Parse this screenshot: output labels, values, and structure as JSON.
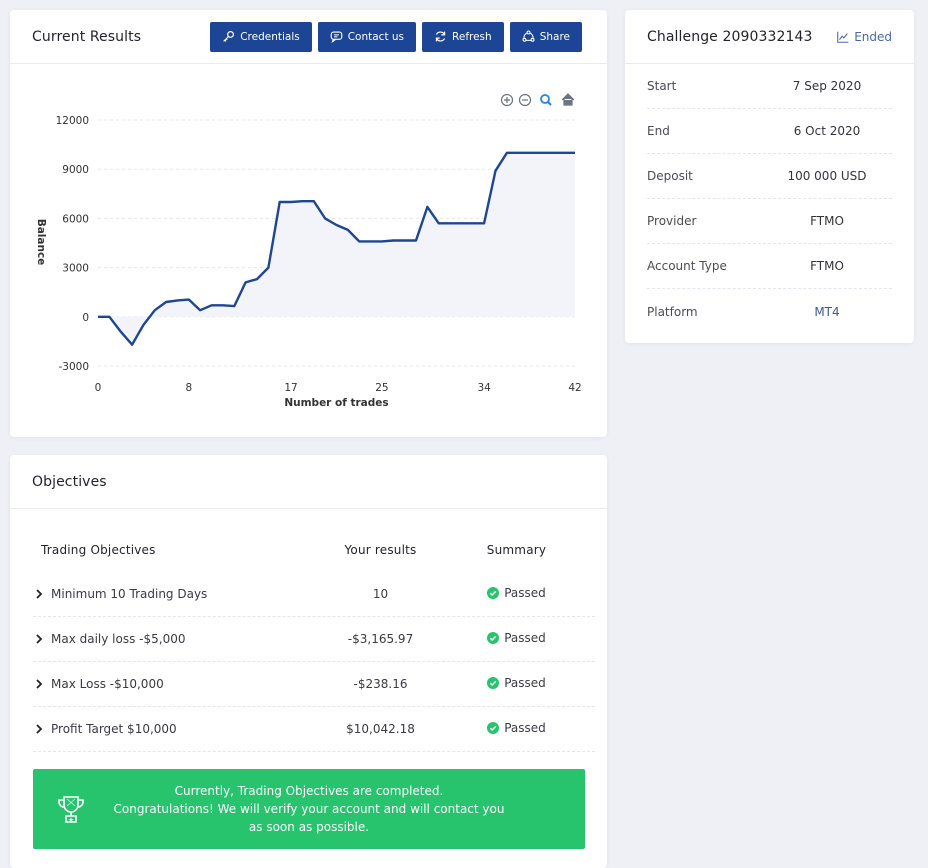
{
  "results": {
    "title": "Current Results",
    "buttons": {
      "credentials": "Credentials",
      "contact": "Contact us",
      "refresh": "Refresh",
      "share": "Share"
    }
  },
  "chart_data": {
    "type": "area",
    "title": "",
    "xlabel": "Number of trades",
    "ylabel": "Balance",
    "xlim": [
      0,
      42
    ],
    "ylim": [
      -3000,
      12000
    ],
    "x_ticks": [
      0,
      8,
      17,
      25,
      34,
      42
    ],
    "y_ticks": [
      -3000,
      0,
      3000,
      6000,
      9000,
      12000
    ],
    "series": [
      {
        "x": [
          0,
          1,
          2,
          3,
          4,
          5,
          6,
          7,
          8,
          9,
          10,
          11,
          12,
          13,
          14,
          15,
          16,
          17,
          18,
          19,
          20,
          21,
          22,
          23,
          24,
          25,
          26,
          27,
          28,
          29,
          30,
          31,
          32,
          33,
          34,
          35,
          36,
          37,
          38,
          39,
          40,
          41,
          42
        ],
        "values": [
          0,
          0,
          -900,
          -1700,
          -500,
          400,
          900,
          1000,
          1050,
          400,
          700,
          700,
          650,
          2100,
          2300,
          3000,
          7000,
          7000,
          7050,
          7050,
          6000,
          5600,
          5300,
          4600,
          4600,
          4600,
          4650,
          4650,
          4650,
          6700,
          5700,
          5700,
          5700,
          5700,
          5700,
          8900,
          10000,
          10000,
          10000,
          10000,
          10000,
          10000,
          10000
        ]
      }
    ],
    "grid": true,
    "colors": {
      "line": "#1e4693",
      "fill": "#f2f4f9",
      "grid": "#e6e8ee"
    }
  },
  "toolbar_icons": [
    "zoom-in-icon",
    "zoom-out-icon",
    "zoom-icon",
    "home-icon"
  ],
  "challenge": {
    "title": "Challenge 2090332143",
    "status": "Ended",
    "rows": [
      {
        "label": "Start",
        "value": "7 Sep 2020"
      },
      {
        "label": "End",
        "value": "6 Oct 2020"
      },
      {
        "label": "Deposit",
        "value": "100 000 USD"
      },
      {
        "label": "Provider",
        "value": "FTMO"
      },
      {
        "label": "Account Type",
        "value": "FTMO"
      },
      {
        "label": "Platform",
        "value": "MT4"
      }
    ]
  },
  "objectives": {
    "title": "Objectives",
    "headers": {
      "objective": "Trading Objectives",
      "result": "Your results",
      "summary": "Summary"
    },
    "rows": [
      {
        "objective": "Minimum 10 Trading Days",
        "result": "10",
        "summary": "Passed"
      },
      {
        "objective": "Max daily loss -$5,000",
        "result": "-$3,165.97",
        "summary": "Passed"
      },
      {
        "objective": "Max Loss -$10,000",
        "result": "-$238.16",
        "summary": "Passed"
      },
      {
        "objective": "Profit Target $10,000",
        "result": "$10,042.18",
        "summary": "Passed"
      }
    ],
    "message": {
      "line1": "Currently, Trading Objectives are completed.",
      "line2": "Congratulations! We will verify your account and will contact you as soon as possible."
    }
  },
  "colors": {
    "accent": "#1d4596",
    "success": "#27c46d",
    "background": "#eef0f5"
  }
}
